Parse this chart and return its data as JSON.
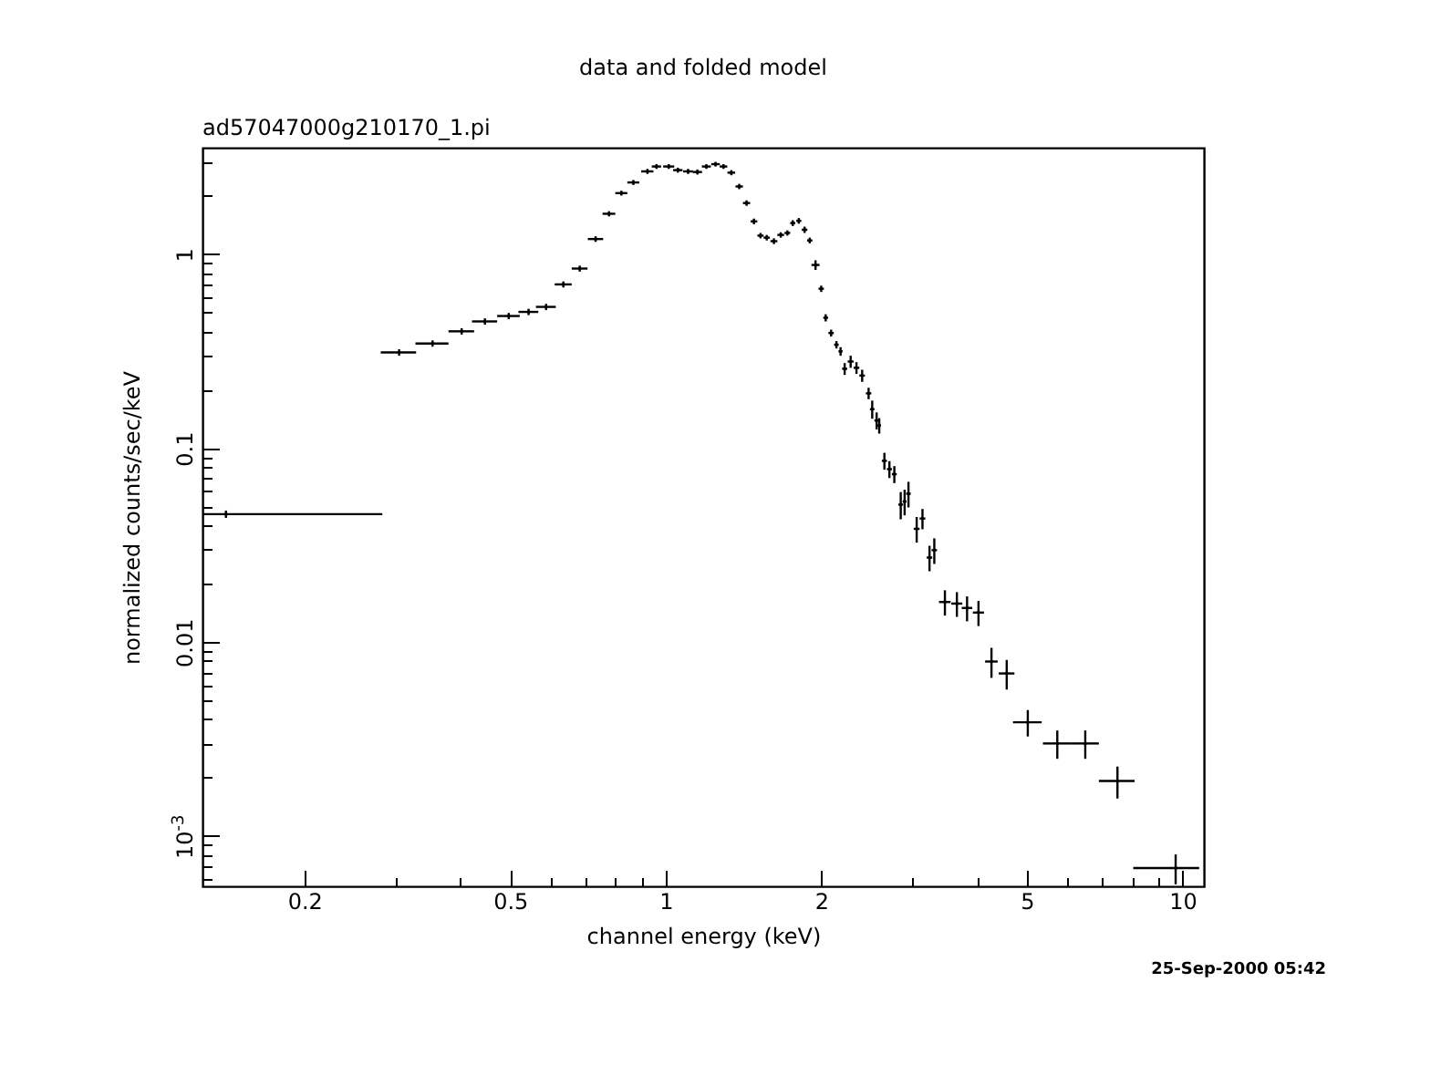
{
  "chart_data": {
    "type": "scatter",
    "title": "data and folded model",
    "subtitle": "ad57047000g210170_1.pi",
    "xlabel": "channel energy (keV)",
    "ylabel": "normalized counts/sec/keV",
    "annotations": [
      "25-Sep-2000 05:42"
    ],
    "log": "xy",
    "grid": false,
    "marker": "square",
    "xlim": [
      0.127,
      11
    ],
    "ylim": [
      0.00055,
      3.55
    ],
    "xticks": [
      0.2,
      {
        "value": 0.3,
        "label": null
      },
      {
        "value": 0.4,
        "label": null
      },
      0.5,
      {
        "value": 0.6,
        "label": null
      },
      {
        "value": 0.7,
        "label": null
      },
      {
        "value": 0.8,
        "label": null
      },
      {
        "value": 0.9,
        "label": null
      },
      1,
      2,
      {
        "value": 3,
        "label": null
      },
      {
        "value": 4,
        "label": null
      },
      5,
      {
        "value": 6,
        "label": null
      },
      {
        "value": 7,
        "label": null
      },
      {
        "value": 8,
        "label": null
      },
      {
        "value": 9,
        "label": null
      },
      10
    ],
    "yticks": [
      {
        "value": 0.0006,
        "label": null
      },
      {
        "value": 0.0007,
        "label": null
      },
      {
        "value": 0.0008,
        "label": null
      },
      {
        "value": 0.0009,
        "label": null
      },
      {
        "value": 0.001,
        "label": "10$^{-3}$"
      },
      {
        "value": 0.002,
        "label": null
      },
      {
        "value": 0.003,
        "label": null
      },
      {
        "value": 0.004,
        "label": null
      },
      {
        "value": 0.005,
        "label": null
      },
      {
        "value": 0.006,
        "label": null
      },
      {
        "value": 0.007,
        "label": null
      },
      {
        "value": 0.008,
        "label": null
      },
      {
        "value": 0.009,
        "label": null
      },
      0.01,
      {
        "value": 0.02,
        "label": null
      },
      {
        "value": 0.03,
        "label": null
      },
      {
        "value": 0.04,
        "label": null
      },
      {
        "value": 0.05,
        "label": null
      },
      {
        "value": 0.06,
        "label": null
      },
      {
        "value": 0.07,
        "label": null
      },
      {
        "value": 0.08,
        "label": null
      },
      {
        "value": 0.09,
        "label": null
      },
      0.1,
      {
        "value": 0.2,
        "label": null
      },
      {
        "value": 0.3,
        "label": null
      },
      {
        "value": 0.4,
        "label": null
      },
      {
        "value": 0.5,
        "label": null
      },
      {
        "value": 0.6,
        "label": null
      },
      {
        "value": 0.7,
        "label": null
      },
      {
        "value": 0.8,
        "label": null
      },
      {
        "value": 0.9,
        "label": null
      },
      1,
      {
        "value": 2,
        "label": null
      },
      {
        "value": 3,
        "label": null
      }
    ],
    "series": [
      {
        "color": "#000000",
        "x": [
          0.141,
          0.305,
          0.354,
          0.403,
          0.447,
          0.497,
          0.543,
          0.587,
          0.634,
          0.682,
          0.732,
          0.777,
          0.821,
          0.866,
          0.922,
          0.96,
          1.014,
          1.056,
          1.105,
          1.152,
          1.199,
          1.249,
          1.294,
          1.34,
          1.388,
          1.434,
          1.482,
          1.526,
          1.569,
          1.62,
          1.67,
          1.72,
          1.762,
          1.81,
          1.857,
          1.9,
          1.95,
          2.0,
          2.04,
          2.09,
          2.14,
          2.18,
          2.22,
          2.28,
          2.34,
          2.4,
          2.47,
          2.51,
          2.56,
          2.59,
          2.65,
          2.71,
          2.77,
          2.85,
          2.9,
          2.95,
          3.06,
          3.14,
          3.24,
          3.31,
          3.47,
          3.66,
          3.83,
          4.03,
          4.27,
          4.57,
          5.02,
          5.725,
          6.485,
          7.485,
          9.7
        ],
        "values": [
          0.0457,
          0.312,
          0.347,
          0.401,
          0.451,
          0.481,
          0.505,
          0.536,
          0.7,
          0.845,
          1.2,
          1.62,
          2.07,
          2.35,
          2.68,
          2.84,
          2.84,
          2.72,
          2.68,
          2.66,
          2.84,
          2.92,
          2.84,
          2.64,
          2.24,
          1.84,
          1.48,
          1.25,
          1.22,
          1.17,
          1.26,
          1.29,
          1.45,
          1.49,
          1.34,
          1.18,
          0.882,
          0.665,
          0.471,
          0.393,
          0.342,
          0.316,
          0.257,
          0.28,
          0.26,
          0.237,
          0.192,
          0.159,
          0.139,
          0.131,
          0.0861,
          0.078,
          0.0735,
          0.0512,
          0.0531,
          0.0583,
          0.0384,
          0.0434,
          0.0273,
          0.0298,
          0.0161,
          0.0158,
          0.015,
          0.0142,
          0.00794,
          0.00689,
          0.00386,
          0.003,
          0.003,
          0.00192,
          0.000683
        ],
        "xerrors": [
          [
            0.127,
            0.283
          ],
          0.024,
          0.026,
          0.023,
          0.025,
          0.025,
          0.024,
          0.026,
          0.024,
          0.024,
          0.025,
          0.022,
          0.022,
          0.023,
          0.025,
          0.02,
          0.025,
          0.022,
          0.024,
          0.024,
          0.024,
          0.024,
          0.022,
          0.023,
          0.023,
          0.023,
          0.022,
          0.021,
          0.022,
          0.025,
          0.025,
          0.022,
          0.02,
          0.02,
          0.023,
          0.022,
          0.035,
          0.024,
          0.022,
          0.025,
          0.022,
          0.02,
          0.025,
          0.03,
          0.03,
          0.03,
          0.03,
          0.025,
          0.025,
          0.02,
          0.03,
          0.03,
          0.03,
          0.03,
          0.025,
          0.03,
          0.04,
          0.04,
          0.04,
          0.04,
          0.09,
          0.09,
          0.09,
          0.1,
          0.12,
          0.16,
          0.32,
          0.355,
          0.405,
          0.595,
          [
            8.03,
            10.77
          ]
        ],
        "errors": [
          0.002,
          0.012,
          0.013,
          0.015,
          0.017,
          0.018,
          0.019,
          0.02,
          0.025,
          0.03,
          0.04,
          0.05,
          0.06,
          0.07,
          0.08,
          0.08,
          0.08,
          0.08,
          0.08,
          0.08,
          0.08,
          0.08,
          0.08,
          0.08,
          0.07,
          0.06,
          0.05,
          0.04,
          0.04,
          0.04,
          0.04,
          0.04,
          0.05,
          0.05,
          0.05,
          0.04,
          0.05,
          0.025,
          0.02,
          0.016,
          0.015,
          0.016,
          0.018,
          0.02,
          0.018,
          0.017,
          0.013,
          0.017,
          0.014,
          0.012,
          0.0086,
          0.0078,
          0.0074,
          0.0082,
          0.008,
          0.0088,
          0.0058,
          0.0052,
          0.0041,
          0.0045,
          0.0024,
          0.0023,
          0.0022,
          0.0021,
          0.0014,
          0.0012,
          0.0006,
          0.0005,
          0.0005,
          0.00036,
          0.00012
        ]
      }
    ]
  }
}
